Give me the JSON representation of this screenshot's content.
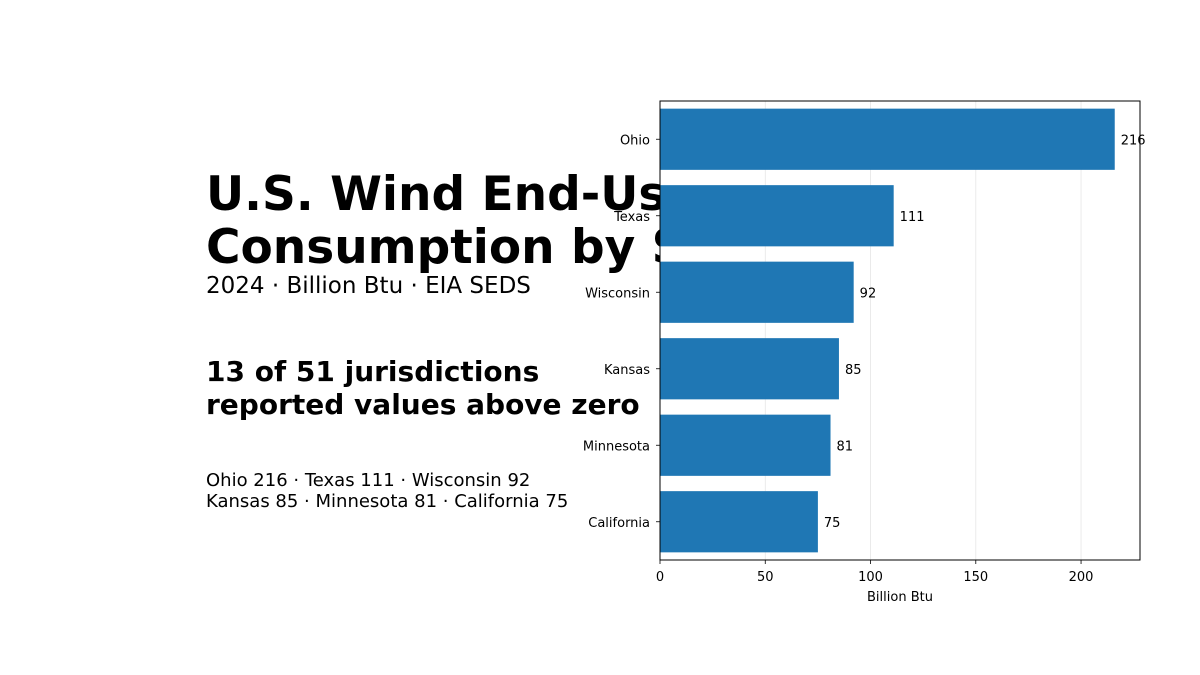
{
  "page": {
    "title_lines": [
      "U.S. Wind End-Use",
      "Consumption by State"
    ],
    "subtitle": "2024 · Billion Btu · EIA SEDS",
    "headline_lines": [
      "13 of 51 jurisdictions",
      "reported values above zero"
    ],
    "summary_lines": [
      "Ohio 216 · Texas 111 · Wisconsin 92",
      "Kansas 85 · Minnesota 81 · California 75"
    ]
  },
  "chart_data": {
    "type": "bar",
    "orientation": "horizontal",
    "categories": [
      "Ohio",
      "Texas",
      "Wisconsin",
      "Kansas",
      "Minnesota",
      "California"
    ],
    "values": [
      216,
      111,
      92,
      85,
      81,
      75
    ],
    "data_labels": [
      "216",
      "111",
      "92",
      "85",
      "81",
      "75"
    ],
    "xlabel": "Billion Btu",
    "ylabel": "",
    "xlim": [
      0,
      228
    ],
    "xticks": [
      0,
      50,
      100,
      150,
      200
    ],
    "grid": "vertical",
    "bar_color": "#1f77b4"
  }
}
